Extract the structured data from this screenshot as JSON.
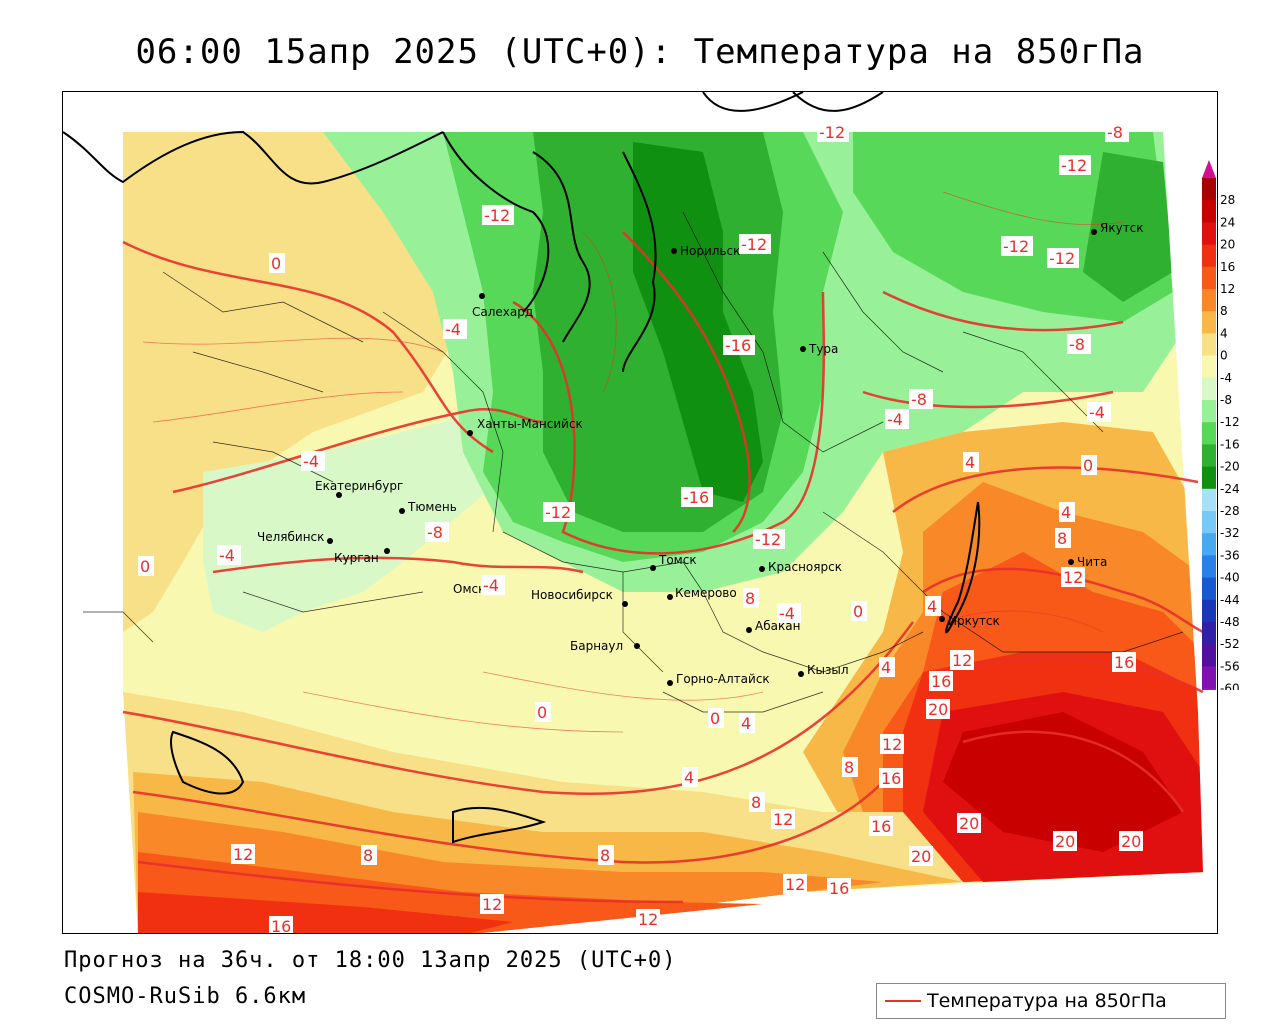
{
  "title": "06:00 15апр 2025 (UTC+0): Температура на 850гПа",
  "footer": {
    "forecast": "Прогноз на 36ч. от 18:00 13апр 2025 (UTC+0)",
    "model": "COSMO-RuSib 6.6км"
  },
  "legend": {
    "label": "Температура на 850гПа",
    "line_color": "#e8302a"
  },
  "colorbar": {
    "ticks": [
      "28",
      "24",
      "20",
      "16",
      "12",
      "8",
      "4",
      "0",
      "-4",
      "-8",
      "-12",
      "-16",
      "-20",
      "-24",
      "-28",
      "-32",
      "-36",
      "-40",
      "-44",
      "-48",
      "-52",
      "-56",
      "-60"
    ],
    "colors": [
      "#a80000",
      "#c80000",
      "#e01010",
      "#f03010",
      "#f85818",
      "#f88828",
      "#f8b848",
      "#f8e088",
      "#f8f8b0",
      "#d8f8c8",
      "#98f098",
      "#58d858",
      "#30b030",
      "#109010",
      "#a8e0f8",
      "#78c8f8",
      "#48a8f0",
      "#2880e8",
      "#1858d0",
      "#1838b8",
      "#3020a8",
      "#5010a0",
      "#8010b0",
      "#b010b8"
    ],
    "top_cap_color": "#d01090",
    "bottom_cap_color": "#9010c0"
  },
  "cities": [
    {
      "name": "Норильск"
    },
    {
      "name": "Салехард"
    },
    {
      "name": "Тура"
    },
    {
      "name": "Якутск"
    },
    {
      "name": "Ханты-Мансийск"
    },
    {
      "name": "Екатеринбург"
    },
    {
      "name": "Тюмень"
    },
    {
      "name": "Челябинск"
    },
    {
      "name": "Курган"
    },
    {
      "name": "Томск"
    },
    {
      "name": "Красноярск"
    },
    {
      "name": "Омск"
    },
    {
      "name": "Новосибирск"
    },
    {
      "name": "Кемерово"
    },
    {
      "name": "Абакан"
    },
    {
      "name": "Барнаул"
    },
    {
      "name": "Горно-Алтайск"
    },
    {
      "name": "Кызыл"
    },
    {
      "name": "Иркутск"
    },
    {
      "name": "Чита"
    }
  ],
  "isotherm_labels": [
    "-12",
    "-8",
    "-12",
    "-12",
    "-12",
    "-12",
    "-12",
    "0",
    "-4",
    "-16",
    "-8",
    "-8",
    "-4",
    "-4",
    "-4",
    "-4",
    "-12",
    "-16",
    "-8",
    "-12",
    "4",
    "0",
    "4",
    "-4",
    "8",
    "-4",
    "0",
    "8",
    "4",
    "12",
    "0",
    "0",
    "4",
    "12",
    "16",
    "16",
    "20",
    "4",
    "0",
    "12",
    "8",
    "16",
    "4",
    "8",
    "12",
    "12",
    "16",
    "20",
    "20",
    "20",
    "20",
    "12",
    "8",
    "8",
    "12",
    "16",
    "12",
    "16"
  ]
}
